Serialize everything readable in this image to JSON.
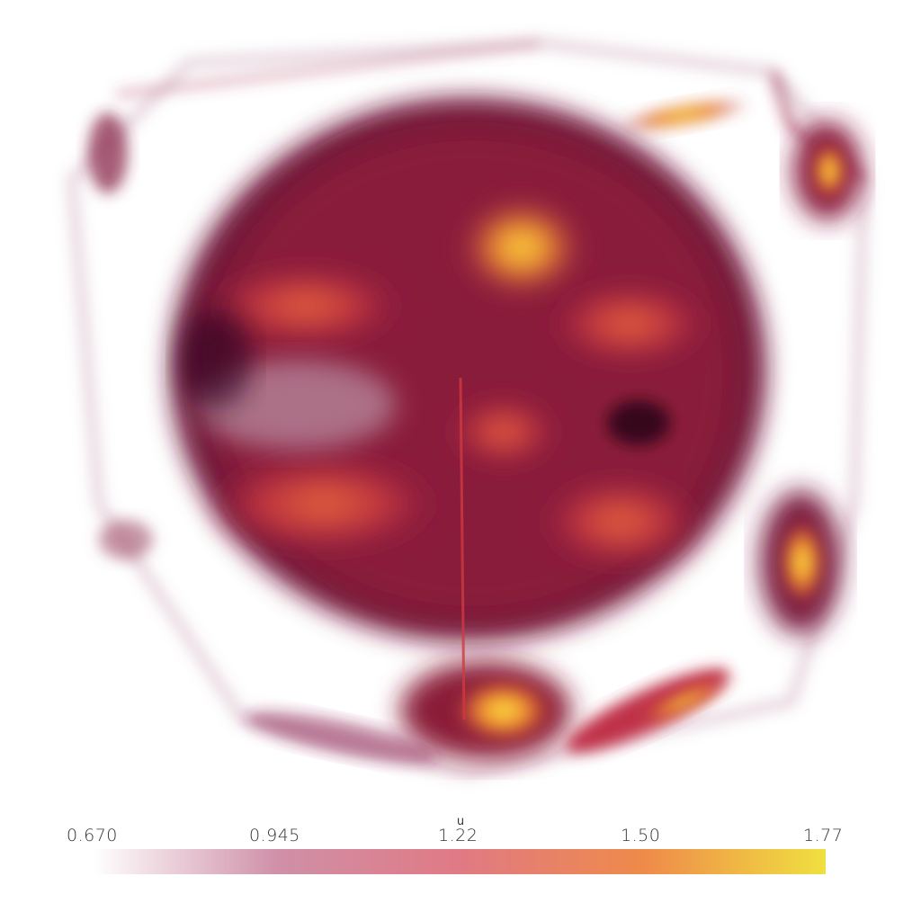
{
  "colorbar": {
    "title": "u",
    "ticks": [
      "0.670",
      "0.945",
      "1.22",
      "1.50",
      "1.77"
    ],
    "range": [
      0.67,
      1.77
    ],
    "colors": [
      "#ffffff",
      "#cf90a8",
      "#e07a84",
      "#ef8a4a",
      "#f0e040"
    ]
  }
}
